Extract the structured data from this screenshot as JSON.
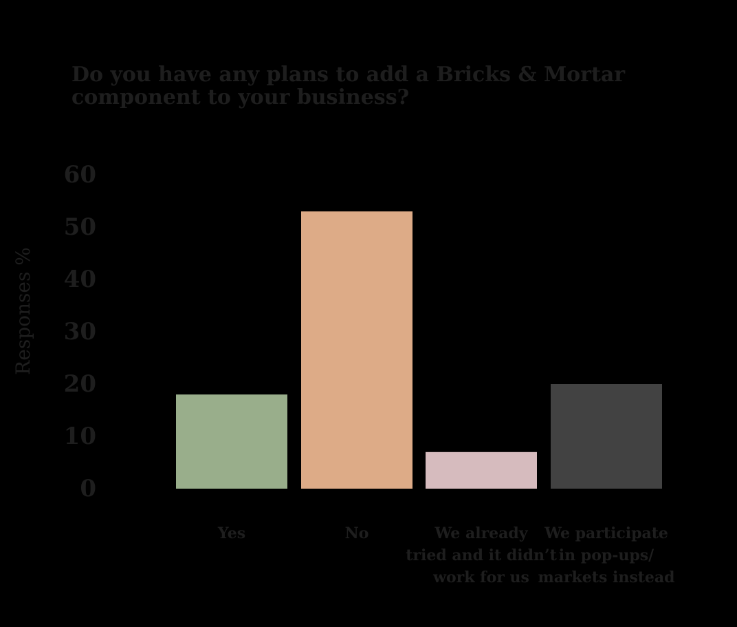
{
  "chart_data": {
    "type": "bar",
    "title": "Do you have any plans to add a Bricks & Mortar component to your business?",
    "xlabel": "",
    "ylabel": "Responses %",
    "ylim": [
      0,
      60
    ],
    "yticks": [
      0,
      10,
      20,
      30,
      40,
      50,
      60
    ],
    "grid": false,
    "categories": [
      [
        "Yes"
      ],
      [
        "No"
      ],
      [
        "We already",
        "tried and it didn’t",
        "work for us"
      ],
      [
        "We participate",
        "in pop-ups/",
        "markets instead"
      ]
    ],
    "values": [
      18,
      53,
      7,
      20
    ],
    "colors": [
      "#99ae8b",
      "#ddab87",
      "#d6bbbe",
      "#424242"
    ]
  }
}
